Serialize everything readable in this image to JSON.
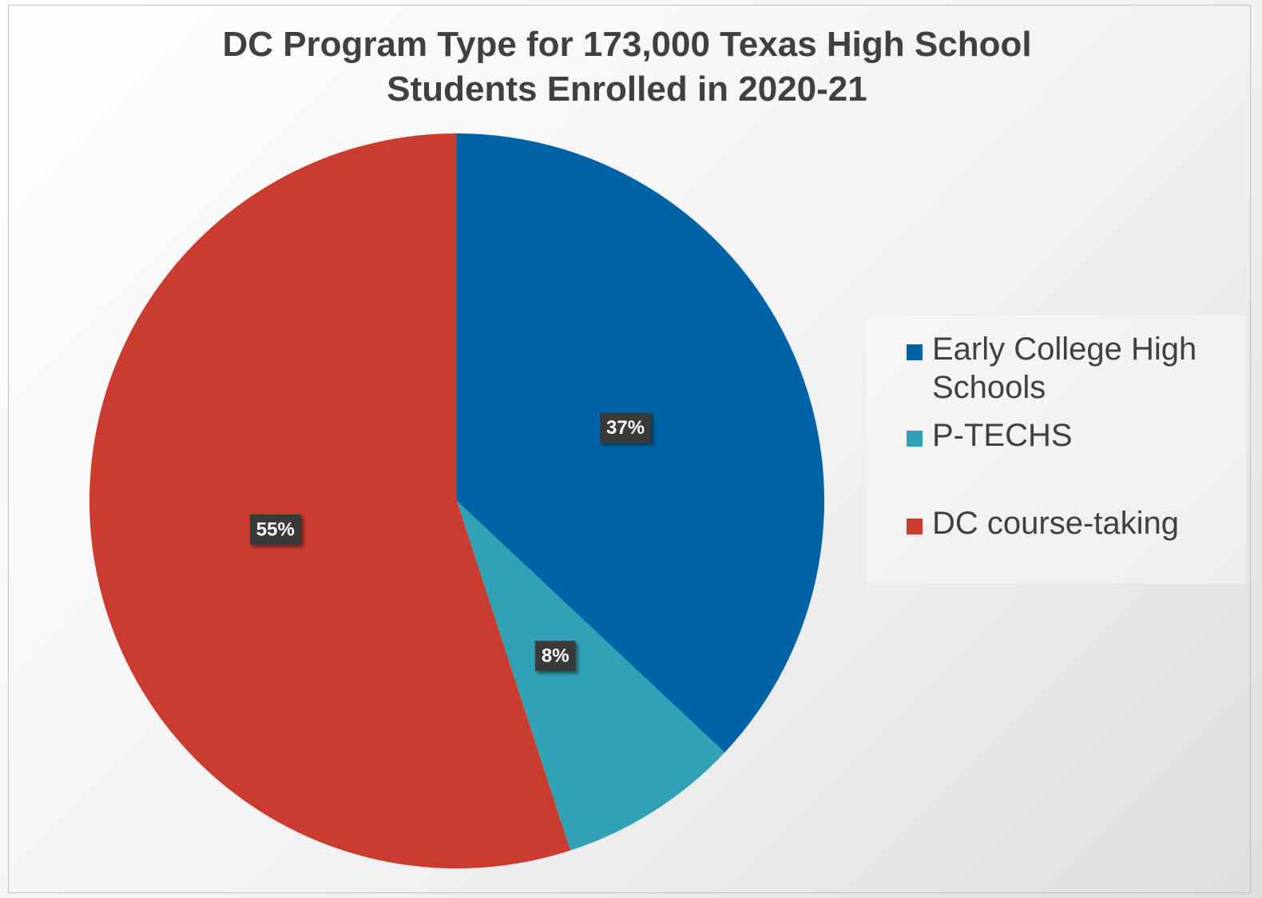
{
  "chart_data": {
    "type": "pie",
    "title": "DC Program Type for 173,000 Texas High School Students Enrolled in 2020-21",
    "categories": [
      "Early College High Schools",
      "P-TECHS",
      "DC course-taking"
    ],
    "values": [
      37,
      8,
      55
    ],
    "value_labels": [
      "37%",
      "8%",
      "55%"
    ],
    "colors": [
      "#0063a6",
      "#31a2b5",
      "#cb3c30"
    ],
    "legend": "right"
  }
}
